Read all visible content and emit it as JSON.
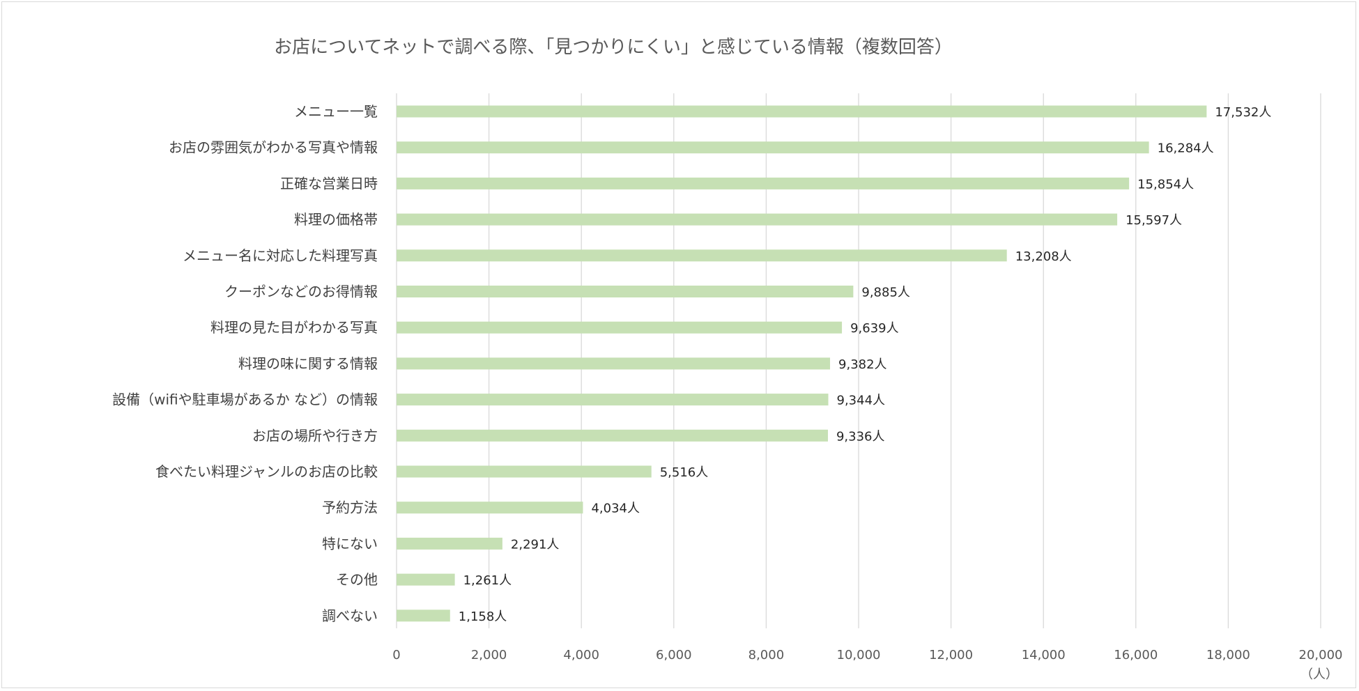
{
  "chart_data": {
    "type": "bar",
    "orientation": "horizontal",
    "title": "お店についてネットで調べる際、「見つかりにくい」と感じている情報（複数回答）",
    "unit_label": "（人）",
    "categories": [
      "メニュー一覧",
      "お店の雰囲気がわかる写真や情報",
      "正確な営業日時",
      "料理の価格帯",
      "メニュー名に対応した料理写真",
      "クーポンなどのお得情報",
      "料理の見た目がわかる写真",
      "料理の味に関する情報",
      "設備（wifiや駐車場があるか など）の情報",
      "お店の場所や行き方",
      "食べたい料理ジャンルのお店の比較",
      "予約方法",
      "特にない",
      "その他",
      "調べない"
    ],
    "values": [
      17532,
      16284,
      15854,
      15597,
      13208,
      9885,
      9639,
      9382,
      9344,
      9336,
      5516,
      4034,
      2291,
      1261,
      1158
    ],
    "data_labels": [
      "17,532人",
      "16,284人",
      "15,854人",
      "15,597人",
      "13,208人",
      "9,885人",
      "9,639人",
      "9,382人",
      "9,344人",
      "9,336人",
      "5,516人",
      "4,034人",
      "2,291人",
      "1,261人",
      "1,158人"
    ],
    "xlim": [
      0,
      20000
    ],
    "x_ticks": [
      0,
      2000,
      4000,
      6000,
      8000,
      10000,
      12000,
      14000,
      16000,
      18000,
      20000
    ],
    "x_tick_labels": [
      "0",
      "2,000",
      "4,000",
      "6,000",
      "8,000",
      "10,000",
      "12,000",
      "14,000",
      "16,000",
      "18,000",
      "20,000"
    ],
    "grid": true,
    "legend": "none",
    "bar_color": "#c6e0b4"
  }
}
